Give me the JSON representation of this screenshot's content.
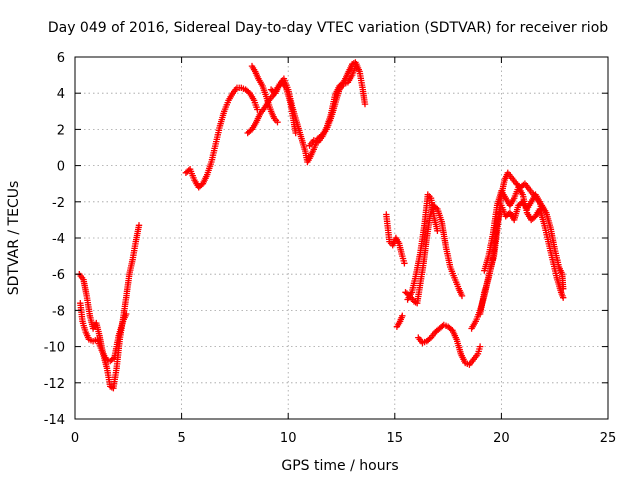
{
  "chart_data": {
    "type": "scatter",
    "title": "Day 049 of 2016, Sidereal Day-to-day VTEC variation (SDTVAR) for receiver riob",
    "xlabel": "GPS time / hours",
    "ylabel": "SDTVAR / TECUs",
    "xlim": [
      0,
      25
    ],
    "ylim": [
      -14,
      6
    ],
    "xticks": [
      0,
      5,
      10,
      15,
      20,
      25
    ],
    "yticks": [
      -14,
      -12,
      -10,
      -8,
      -6,
      -4,
      -2,
      0,
      2,
      4,
      6
    ],
    "grid": true,
    "marker": "+",
    "color": "#ff0000",
    "series": [
      {
        "name": "SDTVAR",
        "segments": [
          {
            "points": [
              [
                0.2,
                -6.0
              ],
              [
                0.4,
                -6.3
              ],
              [
                0.55,
                -7.2
              ],
              [
                0.7,
                -8.3
              ],
              [
                0.85,
                -9.0
              ],
              [
                1.0,
                -8.7
              ],
              [
                1.15,
                -9.4
              ],
              [
                1.3,
                -10.3
              ],
              [
                1.5,
                -11.2
              ],
              [
                1.65,
                -12.2
              ],
              [
                1.8,
                -12.3
              ],
              [
                1.95,
                -11.2
              ],
              [
                2.1,
                -9.6
              ],
              [
                2.25,
                -8.5
              ],
              [
                2.4,
                -7.3
              ],
              [
                2.55,
                -6.0
              ],
              [
                2.7,
                -5.2
              ],
              [
                2.85,
                -4.2
              ],
              [
                3.0,
                -3.3
              ]
            ]
          },
          {
            "points": [
              [
                0.25,
                -7.6
              ],
              [
                0.35,
                -8.6
              ],
              [
                0.5,
                -9.2
              ],
              [
                0.65,
                -9.6
              ],
              [
                0.85,
                -9.7
              ],
              [
                1.05,
                -9.6
              ],
              [
                1.25,
                -10.2
              ],
              [
                1.45,
                -10.7
              ],
              [
                1.65,
                -10.8
              ],
              [
                1.85,
                -10.6
              ],
              [
                2.05,
                -9.4
              ],
              [
                2.25,
                -8.6
              ],
              [
                2.4,
                -8.2
              ]
            ]
          },
          {
            "points": [
              [
                5.2,
                -0.4
              ],
              [
                5.4,
                -0.2
              ],
              [
                5.6,
                -0.8
              ],
              [
                5.8,
                -1.2
              ],
              [
                6.0,
                -1.0
              ],
              [
                6.2,
                -0.5
              ],
              [
                6.4,
                0.2
              ],
              [
                6.6,
                1.2
              ],
              [
                6.8,
                2.2
              ],
              [
                7.0,
                3.0
              ],
              [
                7.2,
                3.6
              ],
              [
                7.4,
                4.0
              ],
              [
                7.6,
                4.3
              ],
              [
                7.8,
                4.3
              ],
              [
                8.0,
                4.2
              ],
              [
                8.2,
                4.0
              ],
              [
                8.4,
                3.6
              ],
              [
                8.55,
                3.1
              ]
            ]
          },
          {
            "points": [
              [
                8.3,
                5.5
              ],
              [
                8.45,
                5.2
              ],
              [
                8.6,
                4.8
              ],
              [
                8.8,
                4.4
              ],
              [
                9.0,
                3.7
              ],
              [
                9.2,
                3.0
              ],
              [
                9.35,
                2.6
              ],
              [
                9.5,
                2.4
              ]
            ]
          },
          {
            "points": [
              [
                8.1,
                1.8
              ],
              [
                8.3,
                2.0
              ],
              [
                8.5,
                2.4
              ],
              [
                8.7,
                2.9
              ],
              [
                8.9,
                3.2
              ],
              [
                9.1,
                3.6
              ],
              [
                9.3,
                3.9
              ],
              [
                9.5,
                4.3
              ],
              [
                9.7,
                4.6
              ],
              [
                9.9,
                4.3
              ],
              [
                10.1,
                3.5
              ],
              [
                10.25,
                2.5
              ],
              [
                10.35,
                1.8
              ]
            ]
          },
          {
            "points": [
              [
                9.2,
                4.2
              ],
              [
                9.4,
                4.0
              ],
              [
                9.6,
                4.5
              ],
              [
                9.8,
                4.8
              ],
              [
                10.0,
                4.2
              ],
              [
                10.2,
                3.2
              ],
              [
                10.4,
                2.4
              ],
              [
                10.6,
                1.6
              ],
              [
                10.8,
                0.8
              ],
              [
                10.9,
                0.2
              ],
              [
                11.0,
                0.4
              ],
              [
                11.2,
                0.9
              ],
              [
                11.4,
                1.5
              ],
              [
                11.6,
                1.7
              ],
              [
                11.8,
                2.0
              ],
              [
                12.0,
                2.6
              ],
              [
                12.2,
                3.4
              ],
              [
                12.4,
                4.2
              ],
              [
                12.6,
                4.5
              ],
              [
                12.8,
                4.6
              ],
              [
                13.0,
                5.0
              ],
              [
                13.2,
                5.6
              ],
              [
                13.35,
                5.2
              ],
              [
                13.5,
                4.2
              ],
              [
                13.6,
                3.4
              ]
            ]
          },
          {
            "points": [
              [
                11.0,
                1.1
              ],
              [
                11.2,
                1.4
              ],
              [
                11.4,
                1.3
              ],
              [
                11.6,
                1.6
              ],
              [
                11.8,
                2.1
              ],
              [
                12.0,
                2.8
              ],
              [
                12.2,
                3.9
              ],
              [
                12.4,
                4.4
              ],
              [
                12.6,
                4.6
              ],
              [
                12.8,
                5.1
              ],
              [
                13.0,
                5.6
              ],
              [
                13.15,
                5.7
              ]
            ]
          },
          {
            "points": [
              [
                14.6,
                -2.7
              ],
              [
                14.75,
                -4.2
              ],
              [
                14.9,
                -4.4
              ],
              [
                15.05,
                -4.0
              ],
              [
                15.2,
                -4.3
              ],
              [
                15.35,
                -5.0
              ],
              [
                15.45,
                -5.4
              ]
            ]
          },
          {
            "points": [
              [
                15.1,
                -8.9
              ],
              [
                15.25,
                -8.6
              ],
              [
                15.35,
                -8.3
              ]
            ]
          },
          {
            "points": [
              [
                15.5,
                -7.0
              ],
              [
                15.7,
                -7.2
              ],
              [
                15.9,
                -7.5
              ],
              [
                16.05,
                -7.6
              ],
              [
                16.2,
                -6.5
              ],
              [
                16.35,
                -5.4
              ],
              [
                16.5,
                -4.0
              ],
              [
                16.65,
                -2.8
              ],
              [
                16.8,
                -2.2
              ],
              [
                17.0,
                -2.4
              ],
              [
                17.2,
                -3.1
              ],
              [
                17.4,
                -4.5
              ],
              [
                17.6,
                -5.6
              ],
              [
                17.8,
                -6.2
              ],
              [
                18.0,
                -6.8
              ],
              [
                18.15,
                -7.2
              ]
            ]
          },
          {
            "points": [
              [
                15.6,
                -7.4
              ],
              [
                15.8,
                -7.0
              ],
              [
                16.0,
                -6.0
              ],
              [
                16.2,
                -4.8
              ],
              [
                16.4,
                -3.2
              ],
              [
                16.55,
                -1.6
              ],
              [
                16.7,
                -1.8
              ],
              [
                16.85,
                -2.9
              ],
              [
                17.0,
                -3.6
              ]
            ]
          },
          {
            "points": [
              [
                16.1,
                -9.5
              ],
              [
                16.3,
                -9.8
              ],
              [
                16.5,
                -9.7
              ],
              [
                16.7,
                -9.5
              ],
              [
                16.9,
                -9.2
              ],
              [
                17.1,
                -9.0
              ],
              [
                17.3,
                -8.8
              ],
              [
                17.5,
                -8.9
              ],
              [
                17.7,
                -9.1
              ],
              [
                17.9,
                -9.6
              ],
              [
                18.1,
                -10.4
              ],
              [
                18.3,
                -10.9
              ],
              [
                18.5,
                -11.0
              ],
              [
                18.7,
                -10.7
              ],
              [
                18.9,
                -10.4
              ],
              [
                19.0,
                -10.0
              ]
            ]
          },
          {
            "points": [
              [
                18.6,
                -9.0
              ],
              [
                18.8,
                -8.6
              ],
              [
                19.0,
                -8.0
              ],
              [
                19.2,
                -7.2
              ],
              [
                19.35,
                -6.4
              ],
              [
                19.5,
                -5.6
              ],
              [
                19.65,
                -5.0
              ],
              [
                19.8,
                -3.6
              ],
              [
                20.0,
                -1.6
              ],
              [
                20.15,
                -0.8
              ],
              [
                20.3,
                -0.4
              ],
              [
                20.5,
                -0.7
              ],
              [
                20.7,
                -1.0
              ],
              [
                20.9,
                -1.2
              ],
              [
                21.1,
                -1.0
              ],
              [
                21.3,
                -1.3
              ],
              [
                21.5,
                -1.6
              ],
              [
                21.7,
                -1.9
              ],
              [
                21.9,
                -2.2
              ],
              [
                22.1,
                -2.6
              ],
              [
                22.3,
                -3.4
              ],
              [
                22.5,
                -4.6
              ],
              [
                22.7,
                -5.6
              ],
              [
                22.85,
                -6.0
              ],
              [
                22.9,
                -6.8
              ]
            ]
          },
          {
            "points": [
              [
                19.2,
                -5.8
              ],
              [
                19.4,
                -5.0
              ],
              [
                19.6,
                -3.8
              ],
              [
                19.8,
                -2.2
              ],
              [
                20.0,
                -1.4
              ],
              [
                20.2,
                -1.8
              ],
              [
                20.4,
                -2.2
              ],
              [
                20.6,
                -1.8
              ],
              [
                20.8,
                -1.2
              ],
              [
                21.0,
                -1.6
              ],
              [
                21.2,
                -2.6
              ],
              [
                21.4,
                -3.0
              ],
              [
                21.6,
                -2.8
              ],
              [
                21.8,
                -2.4
              ],
              [
                22.0,
                -3.2
              ],
              [
                22.2,
                -4.2
              ],
              [
                22.4,
                -5.2
              ],
              [
                22.6,
                -6.2
              ],
              [
                22.8,
                -7.0
              ],
              [
                22.9,
                -7.3
              ]
            ]
          },
          {
            "points": [
              [
                19.0,
                -8.2
              ],
              [
                19.2,
                -7.0
              ],
              [
                19.4,
                -6.2
              ],
              [
                19.6,
                -5.2
              ],
              [
                19.8,
                -3.2
              ],
              [
                20.0,
                -2.2
              ],
              [
                20.2,
                -2.8
              ],
              [
                20.4,
                -2.6
              ],
              [
                20.6,
                -3.0
              ],
              [
                20.8,
                -2.2
              ],
              [
                21.0,
                -2.0
              ],
              [
                21.2,
                -2.4
              ],
              [
                21.4,
                -2.0
              ],
              [
                21.6,
                -1.6
              ],
              [
                21.8,
                -2.0
              ],
              [
                21.9,
                -2.5
              ]
            ]
          }
        ]
      }
    ]
  }
}
